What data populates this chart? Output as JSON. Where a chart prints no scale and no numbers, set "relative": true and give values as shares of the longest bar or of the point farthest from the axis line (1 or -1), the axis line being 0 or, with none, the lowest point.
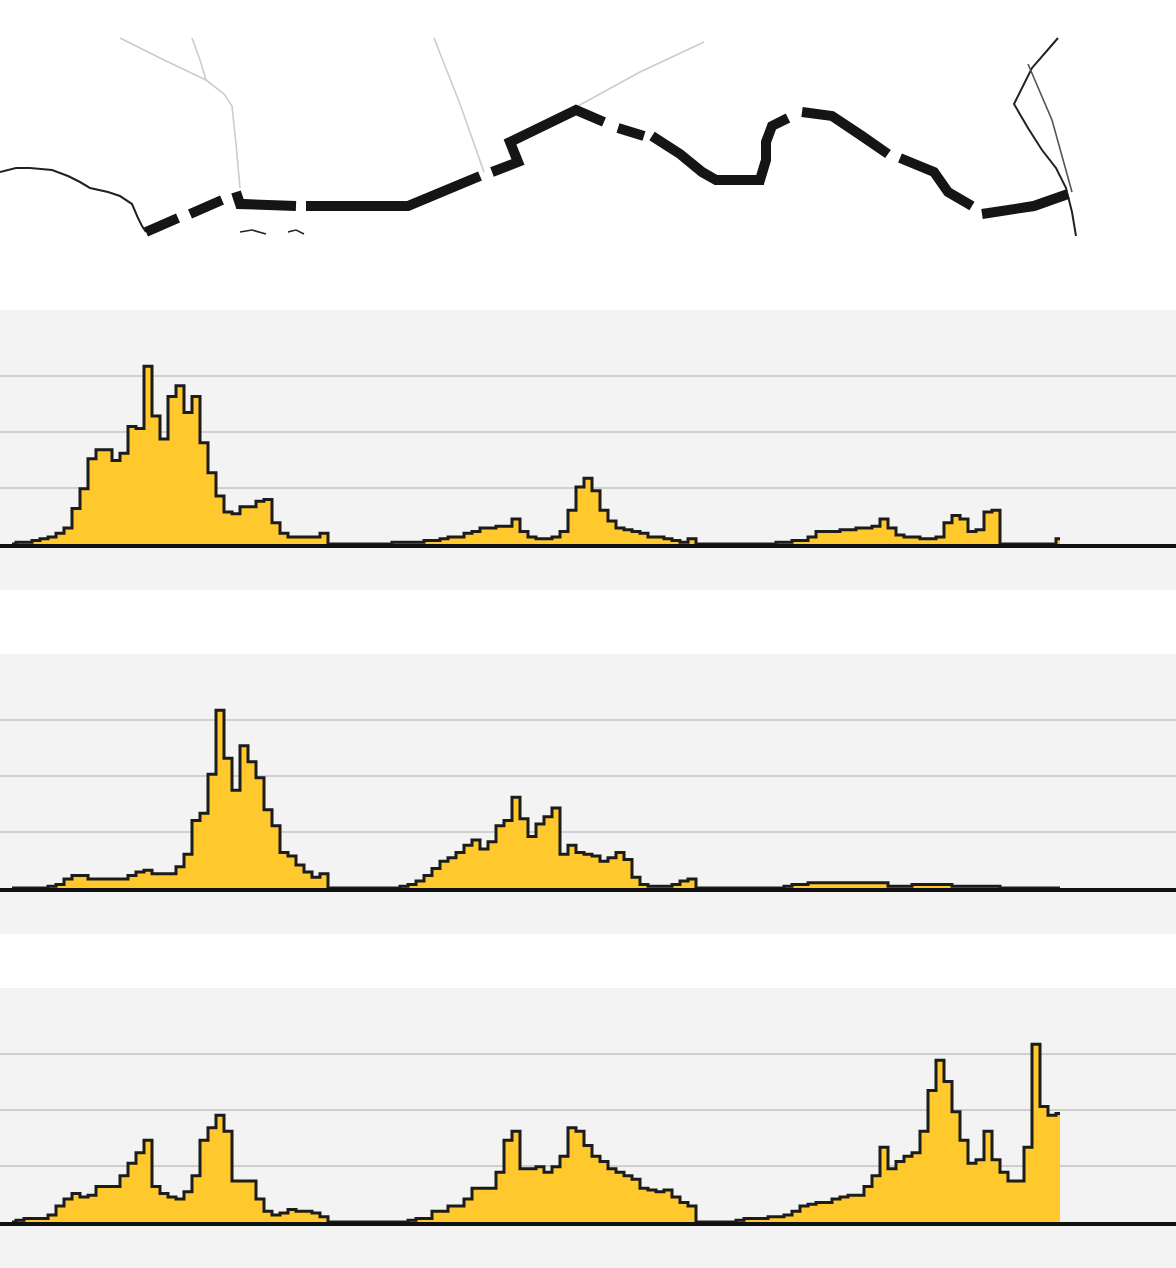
{
  "chart_data": [
    {
      "type": "area",
      "relative": true,
      "grid": "y",
      "color": "#ffc92d",
      "categories": [
        null,
        null,
        null,
        null,
        null,
        null,
        null,
        null,
        null,
        null,
        null,
        null,
        null,
        null,
        null,
        null,
        null,
        null,
        null,
        null,
        null,
        null,
        null,
        null,
        null,
        null,
        null,
        null,
        null,
        null,
        null,
        null,
        null,
        null,
        null,
        null,
        null,
        null,
        null,
        null,
        null,
        null,
        null,
        null,
        null,
        null,
        null,
        null,
        null,
        null,
        null,
        null,
        null,
        null,
        null,
        null,
        null,
        null,
        null,
        null,
        null,
        null,
        null,
        null,
        null,
        null,
        null,
        null,
        null,
        null,
        null,
        null,
        null,
        null,
        null,
        null,
        null,
        null,
        null,
        null,
        null,
        null,
        null,
        null,
        null,
        null,
        null,
        null,
        null,
        null,
        null,
        null,
        null,
        null,
        null,
        null,
        null,
        null,
        null,
        null,
        null,
        null,
        null,
        null,
        null,
        null,
        null,
        null,
        null,
        null,
        null,
        null,
        null,
        null,
        null,
        null,
        null,
        null,
        null,
        null,
        null,
        null,
        null,
        null,
        null,
        null,
        null,
        null,
        null,
        null,
        null,
        null,
        null,
        null,
        null,
        null,
        null,
        null,
        null,
        null,
        null,
        null,
        null,
        null,
        null,
        null
      ],
      "values": [
        0,
        0.01,
        0.01,
        0.02,
        0.03,
        0.04,
        0.06,
        0.09,
        0.2,
        0.31,
        0.48,
        0.53,
        0.53,
        0.47,
        0.51,
        0.66,
        0.65,
        1.0,
        0.72,
        0.59,
        0.83,
        0.89,
        0.74,
        0.83,
        0.57,
        0.4,
        0.27,
        0.18,
        0.17,
        0.21,
        0.21,
        0.24,
        0.25,
        0.12,
        0.06,
        0.04,
        0.04,
        0.04,
        0.04,
        0.06,
        0,
        0,
        0,
        0,
        0,
        0,
        0,
        0,
        0.01,
        0.01,
        0.01,
        0.01,
        0.02,
        0.02,
        0.03,
        0.04,
        0.04,
        0.06,
        0.07,
        0.09,
        0.09,
        0.1,
        0.1,
        0.14,
        0.07,
        0.04,
        0.03,
        0.03,
        0.04,
        0.07,
        0.19,
        0.32,
        0.37,
        0.3,
        0.19,
        0.13,
        0.09,
        0.08,
        0.07,
        0.06,
        0.04,
        0.04,
        0.03,
        0.02,
        0.01,
        0.03,
        0,
        0,
        0,
        0,
        0,
        0,
        0,
        0,
        0,
        0,
        0.01,
        0.01,
        0.02,
        0.02,
        0.04,
        0.07,
        0.07,
        0.07,
        0.08,
        0.08,
        0.09,
        0.09,
        0.1,
        0.14,
        0.09,
        0.05,
        0.04,
        0.04,
        0.03,
        0.03,
        0.04,
        0.12,
        0.16,
        0.14,
        0.07,
        0.08,
        0.18,
        0.19,
        0,
        0,
        0,
        0,
        0,
        0,
        0,
        0.03,
        null,
        null,
        null,
        null,
        null,
        null,
        null,
        null,
        null,
        null,
        null,
        null,
        null,
        null
      ]
    },
    {
      "type": "area",
      "relative": true,
      "grid": "y",
      "color": "#ffc92d",
      "categories": [
        null,
        null,
        null,
        null,
        null,
        null,
        null,
        null,
        null,
        null,
        null,
        null,
        null,
        null,
        null,
        null,
        null,
        null,
        null,
        null,
        null,
        null,
        null,
        null,
        null,
        null,
        null,
        null,
        null,
        null,
        null,
        null,
        null,
        null,
        null,
        null,
        null,
        null,
        null,
        null,
        null,
        null,
        null,
        null,
        null,
        null,
        null,
        null,
        null,
        null,
        null,
        null,
        null,
        null,
        null,
        null,
        null,
        null,
        null,
        null,
        null,
        null,
        null,
        null,
        null,
        null,
        null,
        null,
        null,
        null,
        null,
        null,
        null,
        null,
        null,
        null,
        null,
        null,
        null,
        null,
        null,
        null,
        null,
        null,
        null,
        null,
        null,
        null,
        null,
        null,
        null,
        null,
        null,
        null,
        null,
        null,
        null,
        null,
        null,
        null,
        null,
        null,
        null,
        null,
        null,
        null,
        null,
        null,
        null,
        null,
        null,
        null,
        null,
        null,
        null,
        null,
        null,
        null,
        null,
        null,
        null,
        null,
        null,
        null,
        null,
        null,
        null,
        null,
        null,
        null,
        null,
        null,
        null,
        null,
        null,
        null,
        null,
        null,
        null,
        null,
        null,
        null,
        null,
        null,
        null,
        null
      ],
      "values": [
        0,
        0,
        0,
        0,
        0,
        0.01,
        0.02,
        0.05,
        0.07,
        0.07,
        0.05,
        0.05,
        0.05,
        0.05,
        0.05,
        0.07,
        0.09,
        0.1,
        0.08,
        0.08,
        0.08,
        0.12,
        0.19,
        0.38,
        0.42,
        0.64,
        1.0,
        0.73,
        0.55,
        0.8,
        0.71,
        0.62,
        0.44,
        0.35,
        0.2,
        0.18,
        0.13,
        0.09,
        0.06,
        0.08,
        0,
        0,
        0,
        0,
        0,
        0,
        0,
        0,
        0,
        0.01,
        0.02,
        0.04,
        0.07,
        0.11,
        0.15,
        0.17,
        0.2,
        0.24,
        0.27,
        0.22,
        0.26,
        0.35,
        0.38,
        0.51,
        0.39,
        0.29,
        0.36,
        0.4,
        0.45,
        0.19,
        0.24,
        0.2,
        0.19,
        0.18,
        0.15,
        0.17,
        0.2,
        0.16,
        0.06,
        0.02,
        0.01,
        0.01,
        0.01,
        0.02,
        0.04,
        0.05,
        0,
        0,
        0,
        0,
        0,
        0,
        0,
        0,
        0,
        0,
        0,
        0.01,
        0.02,
        0.02,
        0.03,
        0.03,
        0.03,
        0.03,
        0.03,
        0.03,
        0.03,
        0.03,
        0.03,
        0.03,
        0.01,
        0.01,
        0.01,
        0.02,
        0.02,
        0.02,
        0.02,
        0.02,
        0.01,
        0.01,
        0.01,
        0.01,
        0.01,
        0.01,
        0,
        0,
        0,
        0,
        0,
        0,
        0,
        0,
        null,
        null,
        null,
        null,
        null,
        null,
        null,
        null,
        null,
        null,
        null,
        null,
        null,
        null
      ]
    },
    {
      "type": "area",
      "relative": true,
      "grid": "y",
      "color": "#ffc92d",
      "categories": [
        null,
        null,
        null,
        null,
        null,
        null,
        null,
        null,
        null,
        null,
        null,
        null,
        null,
        null,
        null,
        null,
        null,
        null,
        null,
        null,
        null,
        null,
        null,
        null,
        null,
        null,
        null,
        null,
        null,
        null,
        null,
        null,
        null,
        null,
        null,
        null,
        null,
        null,
        null,
        null,
        null,
        null,
        null,
        null,
        null,
        null,
        null,
        null,
        null,
        null,
        null,
        null,
        null,
        null,
        null,
        null,
        null,
        null,
        null,
        null,
        null,
        null,
        null,
        null,
        null,
        null,
        null,
        null,
        null,
        null,
        null,
        null,
        null,
        null,
        null,
        null,
        null,
        null,
        null,
        null,
        null,
        null,
        null,
        null,
        null,
        null,
        null,
        null,
        null,
        null,
        null,
        null,
        null,
        null,
        null,
        null,
        null,
        null,
        null,
        null,
        null,
        null,
        null,
        null,
        null,
        null,
        null,
        null,
        null,
        null,
        null,
        null,
        null,
        null,
        null,
        null,
        null,
        null,
        null,
        null,
        null,
        null,
        null,
        null,
        null,
        null,
        null,
        null,
        null,
        null,
        null,
        null,
        null,
        null,
        null,
        null,
        null,
        null,
        null,
        null,
        null,
        null,
        null,
        null,
        null,
        null
      ],
      "values": [
        0,
        0.01,
        0.02,
        0.02,
        0.02,
        0.04,
        0.09,
        0.13,
        0.16,
        0.14,
        0.15,
        0.2,
        0.2,
        0.2,
        0.26,
        0.33,
        0.39,
        0.46,
        0.2,
        0.16,
        0.14,
        0.13,
        0.17,
        0.26,
        0.46,
        0.53,
        0.6,
        0.51,
        0.23,
        0.23,
        0.23,
        0.13,
        0.06,
        0.04,
        0.05,
        0.07,
        0.06,
        0.06,
        0.05,
        0.03,
        0,
        0,
        0,
        0,
        0,
        0,
        0,
        0,
        0,
        0,
        0.01,
        0.02,
        0.02,
        0.06,
        0.06,
        0.09,
        0.09,
        0.13,
        0.19,
        0.19,
        0.19,
        0.28,
        0.46,
        0.51,
        0.3,
        0.3,
        0.31,
        0.28,
        0.31,
        0.37,
        0.53,
        0.51,
        0.43,
        0.37,
        0.34,
        0.3,
        0.28,
        0.26,
        0.24,
        0.19,
        0.18,
        0.17,
        0.18,
        0.14,
        0.11,
        0.09,
        0,
        0,
        0,
        0,
        0,
        0.01,
        0.02,
        0.02,
        0.02,
        0.03,
        0.03,
        0.04,
        0.06,
        0.09,
        0.1,
        0.11,
        0.11,
        0.13,
        0.14,
        0.15,
        0.15,
        0.2,
        0.26,
        0.42,
        0.3,
        0.34,
        0.37,
        0.39,
        0.51,
        0.74,
        0.91,
        0.79,
        0.62,
        0.46,
        0.33,
        0.35,
        0.51,
        0.35,
        0.28,
        0.23,
        0.23,
        0.42,
        1.0,
        0.65,
        0.6,
        0.61,
        null,
        null,
        null,
        null,
        null,
        null,
        null,
        null,
        null,
        null,
        null,
        null,
        null,
        null
      ]
    }
  ]
}
